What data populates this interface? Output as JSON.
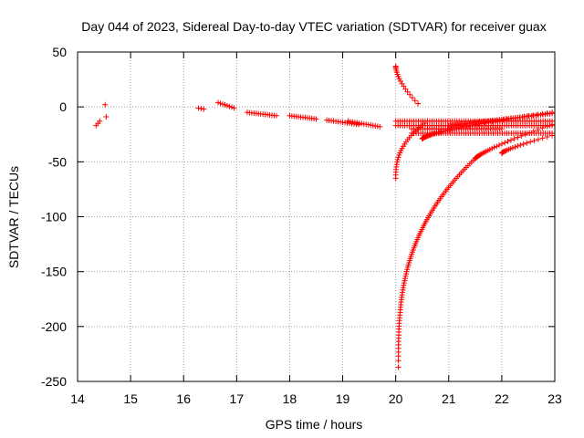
{
  "chart_data": {
    "type": "scatter",
    "title": "Day 044 of 2023, Sidereal Day-to-day VTEC variation (SDTVAR) for receiver guax",
    "xlabel": "GPS time / hours",
    "ylabel": "SDTVAR / TECUs",
    "xlim": [
      14,
      23
    ],
    "ylim": [
      -250,
      50
    ],
    "x_ticks": [
      "14",
      "15",
      "16",
      "17",
      "18",
      "19",
      "20",
      "21",
      "22",
      "23"
    ],
    "y_ticks": [
      "50",
      "0",
      "-50",
      "-100",
      "-150",
      "-200",
      "-250"
    ],
    "grid": true,
    "marker": "plus",
    "colors": {
      "series": "#ff0000",
      "grid": "#a0a0a0",
      "axis": "#000000"
    },
    "series": [
      {
        "name": "SDTVAR",
        "segments": [
          {
            "kind": "line",
            "x0": 14.35,
            "x1": 14.42,
            "y0": -17,
            "y1": -13
          },
          {
            "kind": "points",
            "xs": [
              14.52,
              14.54
            ],
            "ys": [
              2,
              -9
            ]
          },
          {
            "kind": "line",
            "x0": 16.28,
            "x1": 16.38,
            "y0": -1,
            "y1": -2
          },
          {
            "kind": "line",
            "x0": 16.65,
            "x1": 16.95,
            "y0": 4,
            "y1": -1
          },
          {
            "kind": "line",
            "x0": 17.2,
            "x1": 17.75,
            "y0": -5,
            "y1": -8
          },
          {
            "kind": "line",
            "x0": 18.0,
            "x1": 18.5,
            "y0": -8,
            "y1": -11
          },
          {
            "kind": "line",
            "x0": 18.7,
            "x1": 19.3,
            "y0": -12,
            "y1": -16
          },
          {
            "kind": "line",
            "x0": 19.1,
            "x1": 19.7,
            "y0": -13,
            "y1": -18
          },
          {
            "kind": "line",
            "x0": 20.0,
            "x1": 22.95,
            "y0": -13,
            "y1": -13
          },
          {
            "kind": "line",
            "x0": 20.0,
            "x1": 22.95,
            "y0": -17,
            "y1": -17
          },
          {
            "kind": "line",
            "x0": 20.3,
            "x1": 22.0,
            "y0": -20,
            "y1": -20
          },
          {
            "kind": "line",
            "x0": 20.3,
            "x1": 22.95,
            "y0": -24,
            "y1": -24
          },
          {
            "kind": "curve",
            "shape": "power",
            "x0": 20.0,
            "x1": 20.42,
            "y0": 37,
            "y1": 3,
            "p": 0.6
          },
          {
            "kind": "curve",
            "shape": "power",
            "x0": 20.0,
            "x1": 20.6,
            "y0": -65,
            "y1": -13,
            "p": 0.4
          },
          {
            "kind": "curve",
            "shape": "power",
            "x0": 20.05,
            "x1": 21.5,
            "y0": -237,
            "y1": -47,
            "p": 0.35
          },
          {
            "kind": "curve",
            "shape": "power",
            "x0": 21.5,
            "x1": 22.95,
            "y0": -47,
            "y1": -16,
            "p": 0.8
          },
          {
            "kind": "curve",
            "shape": "power",
            "x0": 20.5,
            "x1": 22.95,
            "y0": -29,
            "y1": -5,
            "p": 0.7
          },
          {
            "kind": "line",
            "x0": 21.0,
            "x1": 22.95,
            "y0": -17,
            "y1": -6
          },
          {
            "kind": "curve",
            "shape": "power",
            "x0": 22.0,
            "x1": 22.95,
            "y0": -42,
            "y1": -26,
            "p": 0.8
          }
        ]
      }
    ]
  }
}
